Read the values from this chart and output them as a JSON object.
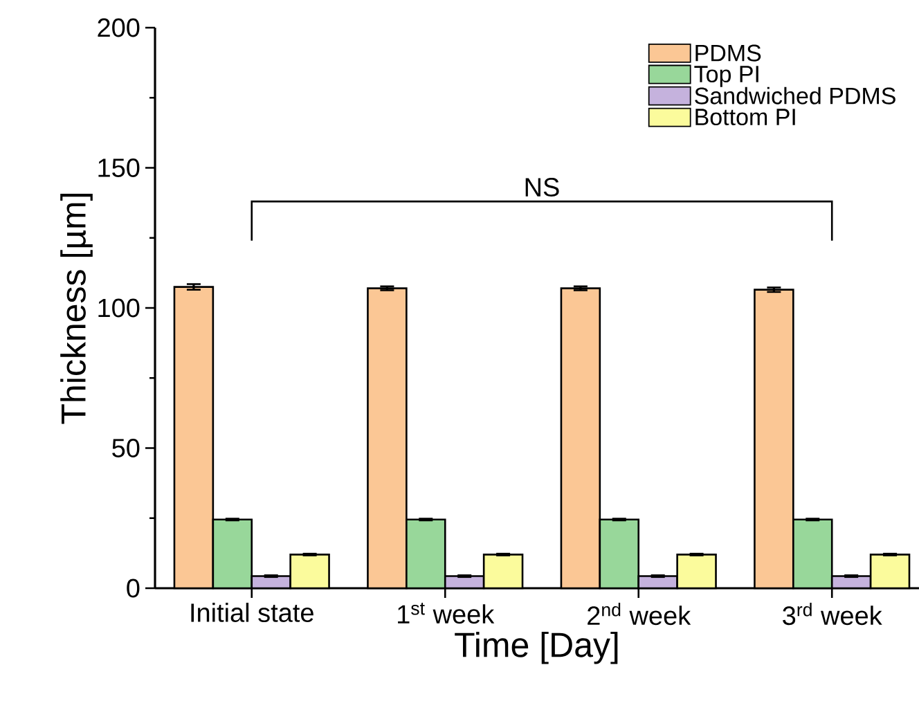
{
  "chart_data": {
    "type": "bar",
    "xlabel": "Time [Day]",
    "ylabel": "Thickness [µm]",
    "categories": [
      "Initial state",
      "1$^{st}$ week",
      "2$^{nd}$ week",
      "3$^{rd}$ week"
    ],
    "series": [
      {
        "name": "PDMS",
        "color": "#fbc795",
        "values": [
          107.5,
          107,
          107,
          106.5
        ],
        "errors": [
          1,
          0.7,
          0.7,
          0.8
        ]
      },
      {
        "name": "Top PI",
        "color": "#98d79a",
        "values": [
          24.5,
          24.5,
          24.5,
          24.5
        ],
        "errors": [
          0.3,
          0.3,
          0.3,
          0.3
        ]
      },
      {
        "name": "Sandwiched PDMS",
        "color": "#c5b2dd",
        "values": [
          4.3,
          4.3,
          4.3,
          4.3
        ],
        "errors": [
          0.3,
          0.3,
          0.3,
          0.3
        ]
      },
      {
        "name": "Bottom PI",
        "color": "#fbfb9c",
        "values": [
          12,
          12,
          12,
          12
        ],
        "errors": [
          0.3,
          0.3,
          0.3,
          0.3
        ]
      }
    ],
    "ylim": [
      0,
      200
    ],
    "yticks": [
      0,
      50,
      100,
      150,
      200
    ],
    "legend": "top right",
    "grid": false,
    "annotations": [
      "NS"
    ]
  }
}
